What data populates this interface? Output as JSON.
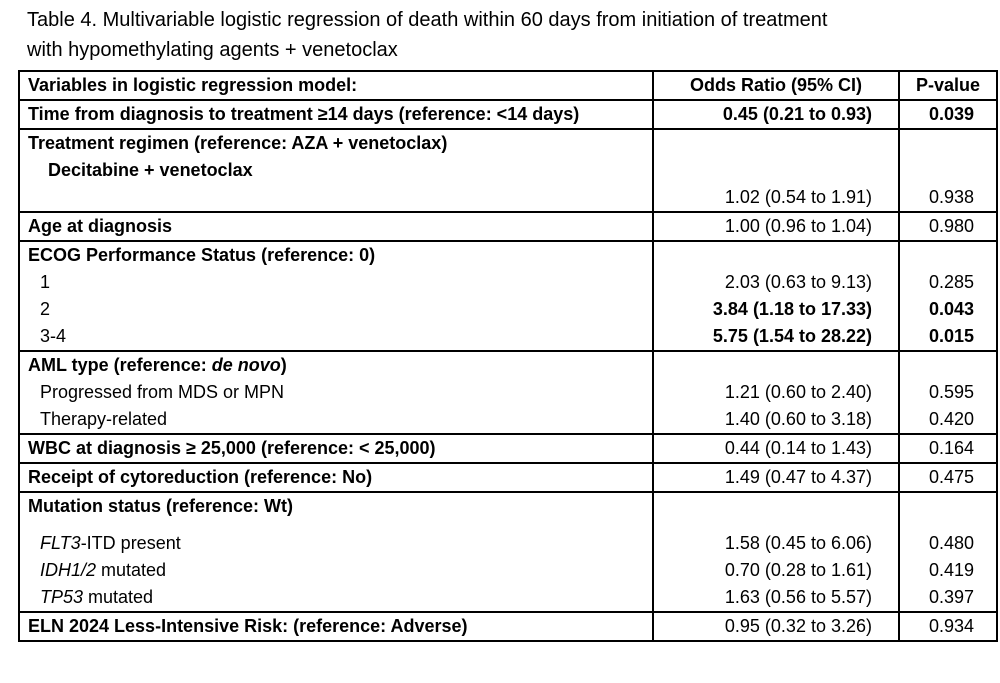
{
  "caption": {
    "line1": "Table 4. Multivariable logistic regression of death within 60 days from initiation of treatment",
    "line2": "with hypomethylating agents + venetoclax"
  },
  "header": {
    "variable": "Variables in logistic regression model:",
    "or": "Odds Ratio (95% CI)",
    "p": "P-value"
  },
  "rows": {
    "time": {
      "label": "Time from diagnosis to treatment ≥14 days (reference: <14 days)",
      "or": "0.45 (0.21 to 0.93)",
      "p": "0.039"
    },
    "regimen": {
      "label": "Treatment regimen (reference: AZA + venetoclax)",
      "sub1": "Decitabine + venetoclax",
      "or": "1.02 (0.54 to 1.91)",
      "p": "0.938"
    },
    "age": {
      "label": "Age at diagnosis",
      "or": "1.00 (0.96 to 1.04)",
      "p": "0.980"
    },
    "ecog": {
      "label": "ECOG Performance Status (reference: 0)",
      "items": [
        {
          "label": "1",
          "or": "2.03 (0.63 to 9.13)",
          "p": "0.285"
        },
        {
          "label": "2",
          "or": "3.84 (1.18 to 17.33)",
          "p": "0.043"
        },
        {
          "label": "3-4",
          "or": "5.75 (1.54 to 28.22)",
          "p": "0.015"
        }
      ]
    },
    "aml": {
      "label_prefix": "AML type (reference: ",
      "label_italic": "de novo",
      "label_suffix": ")",
      "items": [
        {
          "label": "Progressed from MDS or MPN",
          "or": "1.21 (0.60 to 2.40)",
          "p": "0.595"
        },
        {
          "label": "Therapy-related",
          "or": "1.40 (0.60 to 3.18)",
          "p": "0.420"
        }
      ]
    },
    "wbc": {
      "label": "WBC at diagnosis ≥ 25,000 (reference: < 25,000)",
      "or": "0.44 (0.14 to 1.43)",
      "p": "0.164"
    },
    "cyto": {
      "label": "Receipt of cytoreduction (reference: No)",
      "or": "1.49 (0.47 to 4.37)",
      "p": "0.475"
    },
    "mutation": {
      "label": "Mutation status (reference: Wt)",
      "items": [
        {
          "gene": "FLT3",
          "rest": "-ITD present",
          "or": "1.58 (0.45 to 6.06)",
          "p": "0.480"
        },
        {
          "gene": "IDH1/2",
          "rest": " mutated",
          "or": "0.70 (0.28 to 1.61)",
          "p": "0.419"
        },
        {
          "gene": "TP53",
          "rest": " mutated",
          "or": "1.63 (0.56 to 5.57)",
          "p": "0.397"
        }
      ]
    },
    "eln": {
      "label": "ELN 2024 Less-Intensive Risk: (reference: Adverse)",
      "or": "0.95 (0.32 to 3.26)",
      "p": "0.934"
    }
  }
}
